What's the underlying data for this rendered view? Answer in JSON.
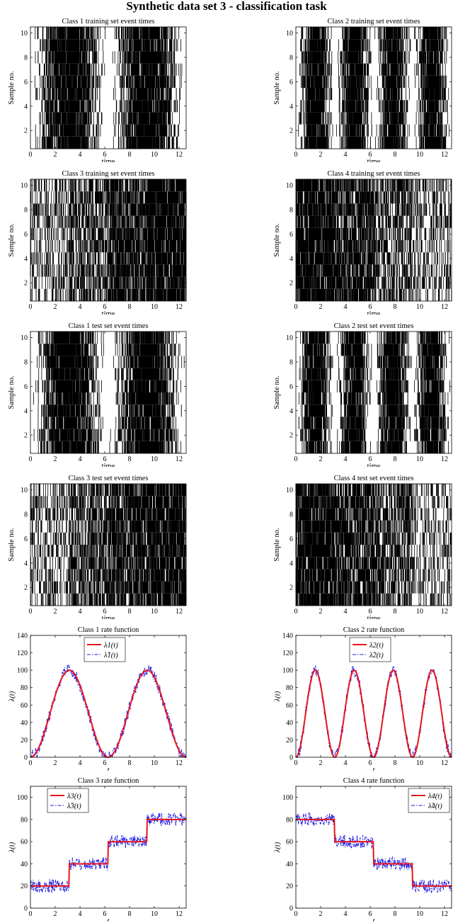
{
  "figure": {
    "title": "Synthetic data set 3 - classification task"
  },
  "chart_data": [
    {
      "id": "r1",
      "type": "raster",
      "title": "Class 1 training set event times",
      "xlabel": "time",
      "ylabel": "Sample no.",
      "xlim": [
        0,
        12.57
      ],
      "ylim": [
        0.5,
        10.5
      ],
      "xticks": [
        0,
        2,
        4,
        6,
        8,
        10,
        12
      ],
      "yticks": [
        2,
        4,
        6,
        8,
        10
      ],
      "samples": 10,
      "rate": {
        "kind": "sin2",
        "freq": 0.5,
        "max": 100
      }
    },
    {
      "id": "r2",
      "type": "raster",
      "title": "Class 2 training set event times",
      "xlabel": "time",
      "ylabel": "Sample no.",
      "xlim": [
        0,
        12.57
      ],
      "ylim": [
        0.5,
        10.5
      ],
      "xticks": [
        0,
        2,
        4,
        6,
        8,
        10,
        12
      ],
      "yticks": [
        2,
        4,
        6,
        8,
        10
      ],
      "samples": 10,
      "rate": {
        "kind": "sin2",
        "freq": 1,
        "max": 100
      }
    },
    {
      "id": "r3",
      "type": "raster",
      "title": "Class 3 training set event times",
      "xlabel": "time",
      "ylabel": "Sample no.",
      "xlim": [
        0,
        12.57
      ],
      "ylim": [
        0.5,
        10.5
      ],
      "xticks": [
        0,
        2,
        4,
        6,
        8,
        10,
        12
      ],
      "yticks": [
        2,
        4,
        6,
        8,
        10
      ],
      "samples": 10,
      "rate": {
        "kind": "steps",
        "levels": [
          20,
          40,
          60,
          80
        ]
      }
    },
    {
      "id": "r4",
      "type": "raster",
      "title": "Class 4 training set event times",
      "xlabel": "time",
      "ylabel": "Sample no.",
      "xlim": [
        0,
        12.57
      ],
      "ylim": [
        0.5,
        10.5
      ],
      "xticks": [
        0,
        2,
        4,
        6,
        8,
        10,
        12
      ],
      "yticks": [
        2,
        4,
        6,
        8,
        10
      ],
      "samples": 10,
      "rate": {
        "kind": "steps",
        "levels": [
          80,
          60,
          40,
          20
        ]
      }
    },
    {
      "id": "r5",
      "type": "raster",
      "title": "Class 1 test set event times",
      "xlabel": "time",
      "ylabel": "Sample no.",
      "xlim": [
        0,
        12.57
      ],
      "ylim": [
        0.5,
        10.5
      ],
      "xticks": [
        0,
        2,
        4,
        6,
        8,
        10,
        12
      ],
      "yticks": [
        2,
        4,
        6,
        8,
        10
      ],
      "samples": 10,
      "rate": {
        "kind": "sin2",
        "freq": 0.5,
        "max": 100
      }
    },
    {
      "id": "r6",
      "type": "raster",
      "title": "Class 2 test set event times",
      "xlabel": "time",
      "ylabel": "Sample no.",
      "xlim": [
        0,
        12.57
      ],
      "ylim": [
        0.5,
        10.5
      ],
      "xticks": [
        0,
        2,
        4,
        6,
        8,
        10,
        12
      ],
      "yticks": [
        2,
        4,
        6,
        8,
        10
      ],
      "samples": 10,
      "rate": {
        "kind": "sin2",
        "freq": 1,
        "max": 100
      }
    },
    {
      "id": "r7",
      "type": "raster",
      "title": "Class 3 test set event times",
      "xlabel": "time",
      "ylabel": "Sample no.",
      "xlim": [
        0,
        12.57
      ],
      "ylim": [
        0.5,
        10.5
      ],
      "xticks": [
        0,
        2,
        4,
        6,
        8,
        10,
        12
      ],
      "yticks": [
        2,
        4,
        6,
        8,
        10
      ],
      "samples": 10,
      "rate": {
        "kind": "steps",
        "levels": [
          20,
          40,
          60,
          80
        ]
      }
    },
    {
      "id": "r8",
      "type": "raster",
      "title": "Class 4 test set event times",
      "xlabel": "time",
      "ylabel": "Sample no.",
      "xlim": [
        0,
        12.57
      ],
      "ylim": [
        0.5,
        10.5
      ],
      "xticks": [
        0,
        2,
        4,
        6,
        8,
        10,
        12
      ],
      "yticks": [
        2,
        4,
        6,
        8,
        10
      ],
      "samples": 10,
      "rate": {
        "kind": "steps",
        "levels": [
          80,
          60,
          40,
          20
        ]
      }
    },
    {
      "id": "l1",
      "type": "line",
      "title": "Class 1 rate function",
      "xlabel": "t",
      "ylabel": "λ(t)",
      "xlim": [
        0,
        12.57
      ],
      "ylim": [
        0,
        140
      ],
      "xticks": [
        0,
        2,
        4,
        6,
        8,
        10,
        12
      ],
      "yticks": [
        0,
        20,
        40,
        60,
        80,
        100,
        120,
        140
      ],
      "legend_position": "top-center",
      "series": [
        {
          "name": "λ1(t)",
          "sub": "1",
          "hat": false,
          "color": "#e8141c",
          "style": "solid",
          "kind": "sin2",
          "freq": 0.5,
          "max": 100
        },
        {
          "name": "λ̂1(t)",
          "sub": "1",
          "hat": true,
          "color": "#1a1ae6",
          "style": "dashdot",
          "kind": "sin2",
          "freq": 0.5,
          "max": 100,
          "noise": 7
        }
      ]
    },
    {
      "id": "l2",
      "type": "line",
      "title": "Class 2 rate function",
      "xlabel": "t",
      "ylabel": "λ(t)",
      "xlim": [
        0,
        12.57
      ],
      "ylim": [
        0,
        140
      ],
      "xticks": [
        0,
        2,
        4,
        6,
        8,
        10,
        12
      ],
      "yticks": [
        0,
        20,
        40,
        60,
        80,
        100,
        120,
        140
      ],
      "legend_position": "top-center",
      "series": [
        {
          "name": "λ2(t)",
          "sub": "2",
          "hat": false,
          "color": "#e8141c",
          "style": "solid",
          "kind": "sin2",
          "freq": 1,
          "max": 100
        },
        {
          "name": "λ̂2(t)",
          "sub": "2",
          "hat": true,
          "color": "#1a1ae6",
          "style": "dashdot",
          "kind": "sin2",
          "freq": 1,
          "max": 100,
          "noise": 7
        }
      ]
    },
    {
      "id": "l3",
      "type": "line",
      "title": "Class 3 rate function",
      "xlabel": "t",
      "ylabel": "λ(t)",
      "xlim": [
        0,
        12.57
      ],
      "ylim": [
        0,
        110
      ],
      "xticks": [
        0,
        2,
        4,
        6,
        8,
        10,
        12
      ],
      "yticks": [
        0,
        20,
        40,
        60,
        80,
        100
      ],
      "legend_position": "top-left",
      "series": [
        {
          "name": "λ3(t)",
          "sub": "3",
          "hat": false,
          "color": "#e8141c",
          "style": "solid",
          "kind": "steps",
          "levels": [
            20,
            40,
            60,
            80
          ]
        },
        {
          "name": "λ̂3(t)",
          "sub": "3",
          "hat": true,
          "color": "#1a1ae6",
          "style": "dashdot",
          "kind": "steps",
          "levels": [
            20,
            40,
            60,
            80
          ],
          "noise": 6
        }
      ]
    },
    {
      "id": "l4",
      "type": "line",
      "title": "Class 4 rate function",
      "xlabel": "t",
      "ylabel": "λ(t)",
      "xlim": [
        0,
        12.57
      ],
      "ylim": [
        0,
        110
      ],
      "xticks": [
        0,
        2,
        4,
        6,
        8,
        10,
        12
      ],
      "yticks": [
        0,
        20,
        40,
        60,
        80,
        100
      ],
      "legend_position": "top-right",
      "series": [
        {
          "name": "λ4(t)",
          "sub": "4",
          "hat": false,
          "color": "#e8141c",
          "style": "solid",
          "kind": "steps",
          "levels": [
            80,
            60,
            40,
            20
          ]
        },
        {
          "name": "λ̂4(t)",
          "sub": "4",
          "hat": true,
          "color": "#1a1ae6",
          "style": "dashdot",
          "kind": "steps",
          "levels": [
            80,
            60,
            40,
            20
          ],
          "noise": 6
        }
      ]
    }
  ]
}
